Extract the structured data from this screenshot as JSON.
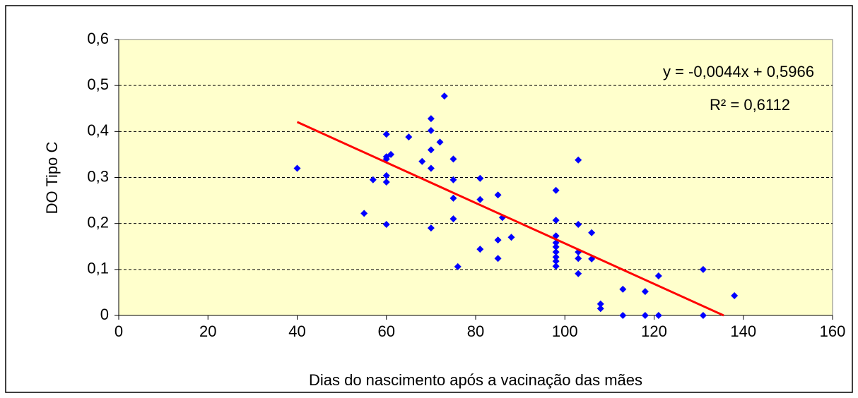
{
  "chart_data": {
    "type": "scatter",
    "x_label": "Dias do nascimento após a vacinação das mães",
    "y_label": "DO Tipo C",
    "color": "#0000ff",
    "background": "#ffffcc",
    "grid": true,
    "x": [
      40,
      55,
      57,
      60,
      60,
      60,
      60,
      60,
      60,
      61,
      65,
      68,
      70,
      70,
      70,
      70,
      70,
      72,
      73,
      75,
      75,
      75,
      75,
      76,
      81,
      81,
      81,
      85,
      85,
      85,
      86,
      88,
      98,
      98,
      98,
      98,
      98,
      98,
      98,
      98,
      98,
      103,
      103,
      103,
      103,
      103,
      106,
      106,
      108,
      108,
      113,
      113,
      118,
      118,
      121,
      121,
      131,
      131,
      138
    ],
    "values": [
      0.32,
      0.222,
      0.295,
      0.394,
      0.34,
      0.304,
      0.29,
      0.198,
      0.345,
      0.35,
      0.388,
      0.335,
      0.428,
      0.402,
      0.36,
      0.32,
      0.19,
      0.377,
      0.477,
      0.34,
      0.295,
      0.255,
      0.21,
      0.106,
      0.298,
      0.252,
      0.144,
      0.262,
      0.164,
      0.124,
      0.213,
      0.17,
      0.272,
      0.207,
      0.173,
      0.158,
      0.149,
      0.138,
      0.127,
      0.118,
      0.107,
      0.338,
      0.198,
      0.138,
      0.124,
      0.091,
      0.18,
      0.123,
      0.025,
      0.015,
      0.057,
      0,
      0.052,
      0,
      0.086,
      0,
      0.1,
      0,
      0.043
    ],
    "xlim": [
      0,
      160
    ],
    "xticks": [
      0,
      20,
      40,
      60,
      80,
      100,
      120,
      140,
      160
    ],
    "ylim": [
      0,
      0.6
    ],
    "yticks": [
      0,
      {
        "value": 0.1,
        "label": "0,1"
      },
      {
        "value": 0.2,
        "label": "0,2"
      },
      {
        "value": 0.3,
        "label": "0,3"
      },
      {
        "value": 0.4,
        "label": "0,4"
      },
      {
        "value": 0.5,
        "label": "0,5"
      },
      {
        "value": 0.6,
        "label": "0,6"
      }
    ],
    "trendline": {
      "slope": -0.0044,
      "intercept": 0.5966,
      "color": "#ff0000",
      "equation_label": "y = -0,0044x + 0,5966",
      "r2_label": "R² = 0,6112"
    }
  }
}
